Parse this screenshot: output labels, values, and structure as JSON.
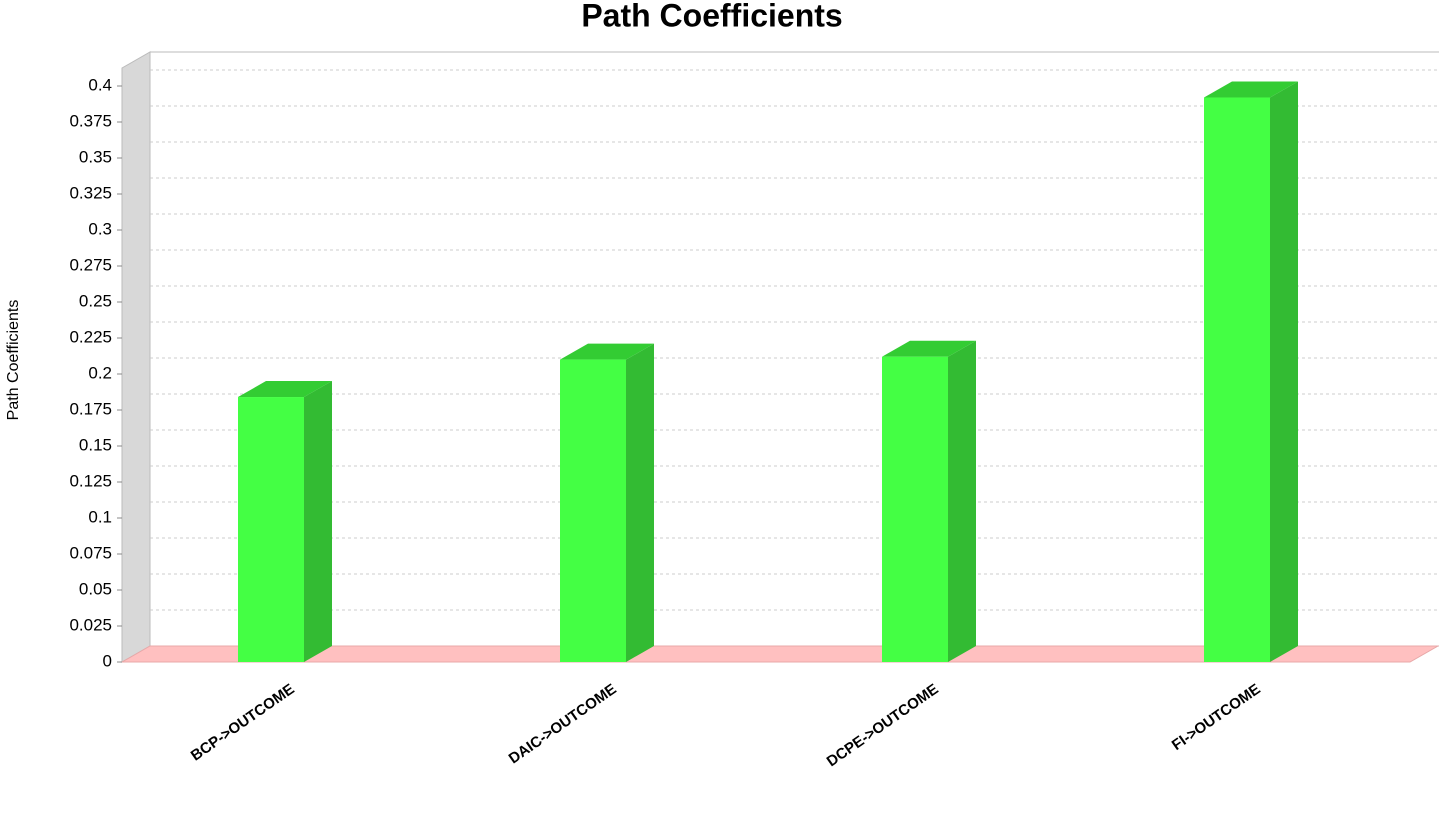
{
  "chart_data": {
    "type": "bar3d",
    "title": "Path Coefficients",
    "y_label": "Path Coefficients",
    "categories": [
      "BCP->OUTCOME",
      "DAIC->OUTCOME",
      "DCPE->OUTCOME",
      "FI->OUTCOME"
    ],
    "values": [
      0.184,
      0.21,
      0.212,
      0.392
    ],
    "color": "#44ff44",
    "ylim": [
      0,
      0.4
    ],
    "yticks": [
      0,
      0.025,
      0.05,
      0.075,
      0.1,
      0.125,
      0.15,
      0.175,
      0.2,
      0.225,
      0.25,
      0.275,
      0.3,
      0.325,
      0.35,
      0.375,
      0.4
    ],
    "grid": true
  }
}
